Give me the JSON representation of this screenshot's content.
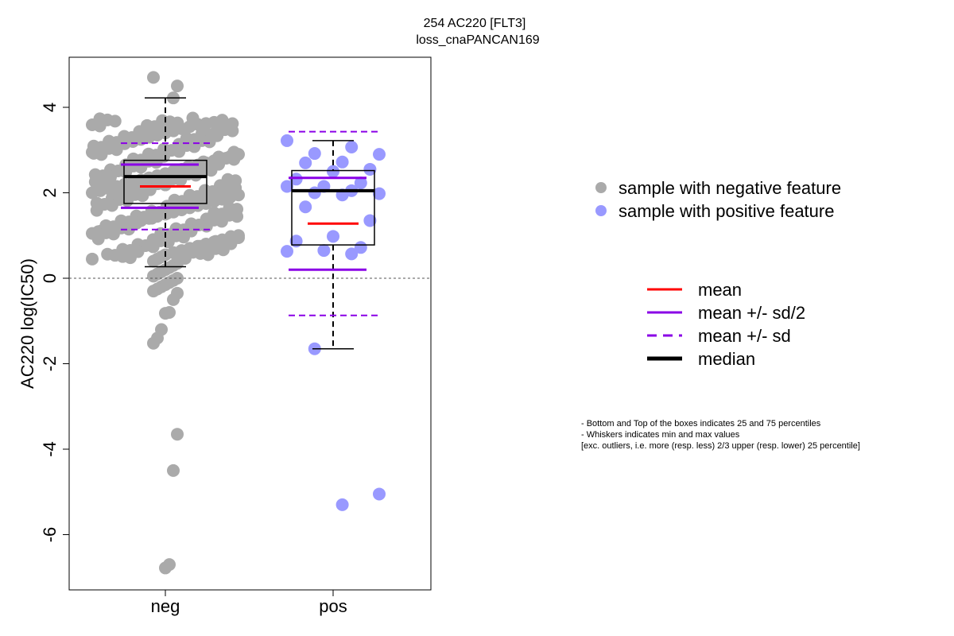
{
  "chart_data": {
    "type": "scatter",
    "title": "254 AC220 [FLT3]",
    "subtitle": "loss_cnaPANCAN169",
    "xlabel": "",
    "ylabel": "AC220 log(IC50)",
    "categories": [
      "neg",
      "pos"
    ],
    "ylim": [
      -7.2,
      5.0
    ],
    "yticks": [
      -6,
      -4,
      -2,
      0,
      2,
      4
    ],
    "reference_line": 0,
    "colors": {
      "neg_points": "#aaaaaa",
      "pos_points": "#9999ff",
      "mean": "#ff0000",
      "sd": "#8a00e6",
      "median": "#000000"
    },
    "groups": [
      {
        "name": "neg",
        "stats": {
          "q1": 1.75,
          "median": 2.38,
          "q3": 2.76,
          "whisker_low": 0.27,
          "whisker_high": 4.22,
          "mean": 2.15,
          "mean_minus_half_sd": 1.65,
          "mean_plus_half_sd": 2.66,
          "mean_minus_sd": 1.14,
          "mean_plus_sd": 3.16
        },
        "points": [
          4.7,
          4.5,
          4.22,
          3.7,
          3.65,
          3.62,
          3.6,
          3.55,
          3.5,
          3.45,
          3.4,
          3.35,
          3.3,
          3.25,
          3.2,
          3.15,
          3.1,
          3.05,
          3.0,
          2.95,
          2.9,
          2.85,
          2.8,
          2.75,
          2.7,
          2.65,
          2.6,
          2.55,
          2.5,
          2.45,
          2.4,
          2.35,
          2.3,
          2.25,
          2.2,
          2.15,
          2.1,
          2.05,
          2.0,
          1.95,
          1.9,
          1.85,
          1.8,
          1.75,
          1.7,
          1.65,
          1.6,
          1.55,
          1.5,
          1.45,
          1.4,
          1.35,
          1.3,
          1.25,
          1.2,
          1.15,
          1.1,
          1.05,
          1.0,
          0.95,
          0.9,
          0.85,
          0.8,
          0.75,
          0.7,
          0.65,
          0.6,
          0.55,
          0.5,
          0.45,
          0.4,
          0.35,
          0.3,
          0.25,
          0.2,
          0.15,
          0.1,
          0.05,
          0.0,
          -0.05,
          -0.1,
          -0.15,
          -0.2,
          -0.25,
          -0.3,
          -0.35,
          -0.5,
          -0.8,
          -0.82,
          -1.2,
          -1.4,
          -1.52,
          -3.65,
          -4.5,
          -6.7,
          -6.78
        ]
      },
      {
        "name": "pos",
        "stats": {
          "q1": 0.78,
          "median": 2.05,
          "q3": 2.52,
          "whisker_low": -1.65,
          "whisker_high": 3.22,
          "mean": 1.28,
          "mean_minus_half_sd": 0.2,
          "mean_plus_half_sd": 2.35,
          "mean_minus_sd": -0.87,
          "mean_plus_sd": 3.43
        },
        "points": [
          3.22,
          3.07,
          2.92,
          2.9,
          2.72,
          2.7,
          2.55,
          2.5,
          2.32,
          2.23,
          2.15,
          2.15,
          2.05,
          2.0,
          1.98,
          1.95,
          1.67,
          1.35,
          0.98,
          0.87,
          0.72,
          0.65,
          0.63,
          0.57,
          -1.65,
          -5.05,
          -5.3
        ]
      }
    ],
    "legend_points": [
      {
        "label": "sample with negative feature",
        "color": "#aaaaaa"
      },
      {
        "label": "sample with positive feature",
        "color": "#9999ff"
      }
    ],
    "legend_lines": [
      {
        "label": "mean",
        "color": "#ff0000",
        "style": "solid",
        "weight": "normal"
      },
      {
        "label": "mean +/- sd/2",
        "color": "#8a00e6",
        "style": "solid",
        "weight": "normal"
      },
      {
        "label": "mean +/- sd",
        "color": "#8a00e6",
        "style": "dashed",
        "weight": "normal"
      },
      {
        "label": "median",
        "color": "#000000",
        "style": "solid",
        "weight": "bold"
      }
    ],
    "notes": [
      "- Bottom and Top of the boxes indicates 25 and 75 percentiles",
      "- Whiskers indicates min and max values",
      "[exc. outliers, i.e. more (resp. less) 2/3 upper (resp. lower) 25 percentile]"
    ]
  }
}
